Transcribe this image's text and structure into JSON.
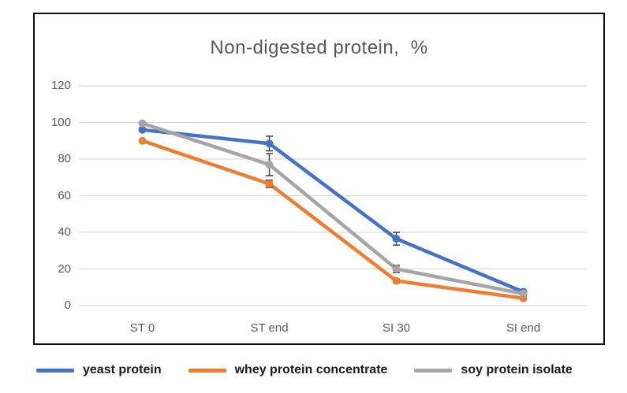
{
  "chart_data": {
    "type": "line",
    "title": "Non-digested protein,  %",
    "categories": [
      "ST 0",
      "ST end",
      "SI 30",
      "SI end"
    ],
    "series": [
      {
        "name": "yeast protein",
        "color": "#4472C4",
        "values": [
          96,
          88.5,
          36.5,
          7.5
        ],
        "errors": [
          0.5,
          4,
          3.5,
          0.5
        ]
      },
      {
        "name": "whey protein concentrate",
        "color": "#ED7D31",
        "values": [
          90,
          66.5,
          13.5,
          4
        ],
        "errors": [
          0.5,
          2,
          1,
          0.5
        ]
      },
      {
        "name": "soy protein isolate",
        "color": "#A5A5A5",
        "values": [
          99.5,
          77,
          20,
          6.5
        ],
        "errors": [
          0.5,
          6,
          2,
          0.5
        ]
      }
    ],
    "yticks": [
      0,
      20,
      40,
      60,
      80,
      100,
      120
    ],
    "ylim": [
      0,
      120
    ],
    "grid": true,
    "legend_position": "bottom",
    "colors": {
      "gridline": "#D9D9D9",
      "error_bar": "#404040",
      "axis_labels": "#595959",
      "title": "#595959",
      "legend_text": "#1a1a1a",
      "frame_border": "#0d0d0d"
    }
  }
}
